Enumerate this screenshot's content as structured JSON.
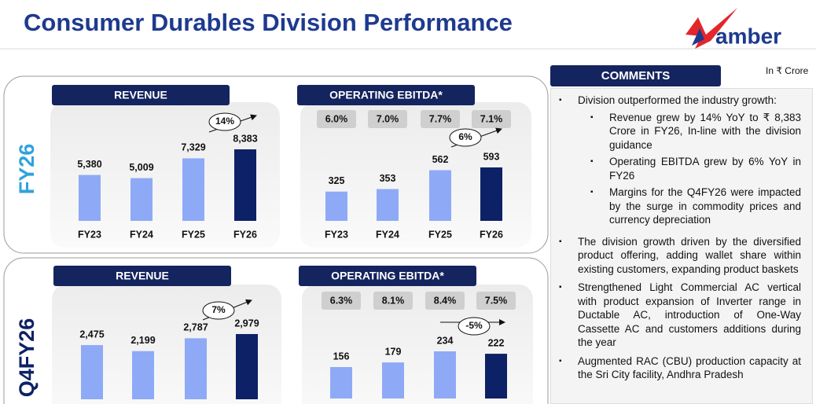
{
  "header": {
    "title": "Consumer Durables Division Performance",
    "logo": "amber",
    "unit": "In ₹ Crore"
  },
  "panels": [
    {
      "label": "FY26"
    },
    {
      "label": "Q4FY26"
    }
  ],
  "chart_data": [
    {
      "type": "bar",
      "title": "REVENUE",
      "categories": [
        "FY23",
        "FY24",
        "FY25",
        "FY26"
      ],
      "values": [
        5380,
        5009,
        7329,
        8383
      ],
      "value_labels": [
        "5,380",
        "5,009",
        "7,329",
        "8,383"
      ],
      "colors": [
        "#8eaaf7",
        "#8eaaf7",
        "#8eaaf7",
        "#0d2166"
      ],
      "growth": "14%"
    },
    {
      "type": "bar",
      "title": "OPERATING EBITDA*",
      "categories": [
        "FY23",
        "FY24",
        "FY25",
        "FY26"
      ],
      "values": [
        325,
        353,
        562,
        593
      ],
      "colors": [
        "#8eaaf7",
        "#8eaaf7",
        "#8eaaf7",
        "#0d2166"
      ],
      "growth": "6%",
      "margins": {
        "values": [
          6.0,
          7.0,
          7.7,
          7.1
        ],
        "value_labels": [
          "6.0%",
          "7.0%",
          "7.7%",
          "7.1%"
        ]
      }
    },
    {
      "type": "bar",
      "title": "REVENUE",
      "values": [
        2475,
        2199,
        2787,
        2979
      ],
      "value_labels": [
        "2,475",
        "2,199",
        "2,787",
        "2,979"
      ],
      "colors": [
        "#8eaaf7",
        "#8eaaf7",
        "#8eaaf7",
        "#0d2166"
      ],
      "growth": "7%"
    },
    {
      "type": "bar",
      "title": "OPERATING EBITDA*",
      "values": [
        156,
        179,
        234,
        222
      ],
      "colors": [
        "#8eaaf7",
        "#8eaaf7",
        "#8eaaf7",
        "#0d2166"
      ],
      "growth": "-5%",
      "margins": {
        "values": [
          6.3,
          8.1,
          8.4,
          7.5
        ],
        "value_labels": [
          "6.3%",
          "8.1%",
          "8.4%",
          "7.5%"
        ]
      }
    }
  ],
  "comments": {
    "title": "COMMENTS",
    "items": [
      {
        "text": "Division outperformed the industry growth:",
        "sub": [
          "Revenue grew by 14% YoY to ₹ 8,383 Crore in FY26, In-line with the division guidance",
          "Operating EBITDA grew by 6% YoY in FY26",
          "Margins for the Q4FY26 were impacted by the surge in commodity prices and currency depreciation"
        ]
      },
      {
        "text": "The division growth driven by the diversified product offering, adding wallet share within existing customers, expanding product baskets",
        "sub": []
      },
      {
        "text": "Strengthened Light Commercial AC vertical with product expansion of Inverter range in Ductable AC, introduction of One-Way Cassette AC and customers additions during the year",
        "sub": []
      },
      {
        "text": "Augmented RAC (CBU) production capacity at the Sri City facility, Andhra Pradesh",
        "sub": []
      }
    ]
  }
}
